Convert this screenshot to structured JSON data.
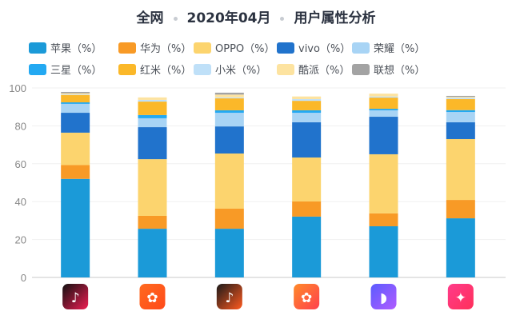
{
  "title": {
    "scope": "全网",
    "period": "2020年04月",
    "subject": "用户属性分析"
  },
  "chart_data": {
    "type": "bar",
    "stacked": true,
    "title": "全网 · 2020年04月 · 用户属性分析",
    "xlabel": "",
    "ylabel": "",
    "ylim": [
      0,
      100
    ],
    "yticks": [
      0,
      20,
      40,
      60,
      80,
      100
    ],
    "grid": true,
    "legend_position": "top",
    "categories": [
      "douyin-icon",
      "kuaishou-icon",
      "douyin-huoshan-icon",
      "kuaishou-speed-icon",
      "purple-app-icon",
      "pink-app-icon"
    ],
    "category_colors": [
      [
        "#111111",
        "#ee1d52"
      ],
      [
        "#ff6a1f",
        "#ff4a1a"
      ],
      [
        "#1a1a1a",
        "#ff5a1f"
      ],
      [
        "#ff8a2a",
        "#ff3f4d"
      ],
      [
        "#5b5cff",
        "#b05cff"
      ],
      [
        "#ff3c8a",
        "#ff2f5a"
      ]
    ],
    "series": [
      {
        "name": "苹果（%）",
        "color": "#1b9ad8",
        "values": [
          52.0,
          25.7,
          25.7,
          32.1,
          27.0,
          31.2
        ]
      },
      {
        "name": "华为（%）",
        "color": "#f89a26",
        "values": [
          7.3,
          6.8,
          10.6,
          8.0,
          6.8,
          9.7
        ]
      },
      {
        "name": "OPPO（%）",
        "color": "#fcd46e",
        "values": [
          17.1,
          29.9,
          29.1,
          23.2,
          31.2,
          32.1
        ]
      },
      {
        "name": "vivo（%）",
        "color": "#2173cc",
        "values": [
          10.5,
          16.9,
          14.3,
          18.6,
          19.8,
          8.9
        ]
      },
      {
        "name": "荣耀（%）",
        "color": "#a8d4f5",
        "values": [
          4.7,
          4.7,
          7.2,
          5.0,
          3.4,
          5.4
        ]
      },
      {
        "name": "三星（%）",
        "color": "#23a9f2",
        "values": [
          0.8,
          1.7,
          1.3,
          1.3,
          0.8,
          1.0
        ]
      },
      {
        "name": "红米（%）",
        "color": "#fbb829",
        "values": [
          3.8,
          7.1,
          6.3,
          5.0,
          5.9,
          5.8
        ]
      },
      {
        "name": "小米（%）",
        "color": "#bfe0f8",
        "values": [
          0.3,
          0.9,
          0.5,
          0.9,
          0.6,
          0.7
        ]
      },
      {
        "name": "酷派（%）",
        "color": "#fde3a0",
        "values": [
          0.7,
          1.3,
          1.5,
          1.4,
          1.5,
          0.5
        ]
      },
      {
        "name": "联想（%）",
        "color": "#a3a3a3",
        "values": [
          0.7,
          0.0,
          1.0,
          0.0,
          0.0,
          0.5
        ]
      }
    ]
  }
}
